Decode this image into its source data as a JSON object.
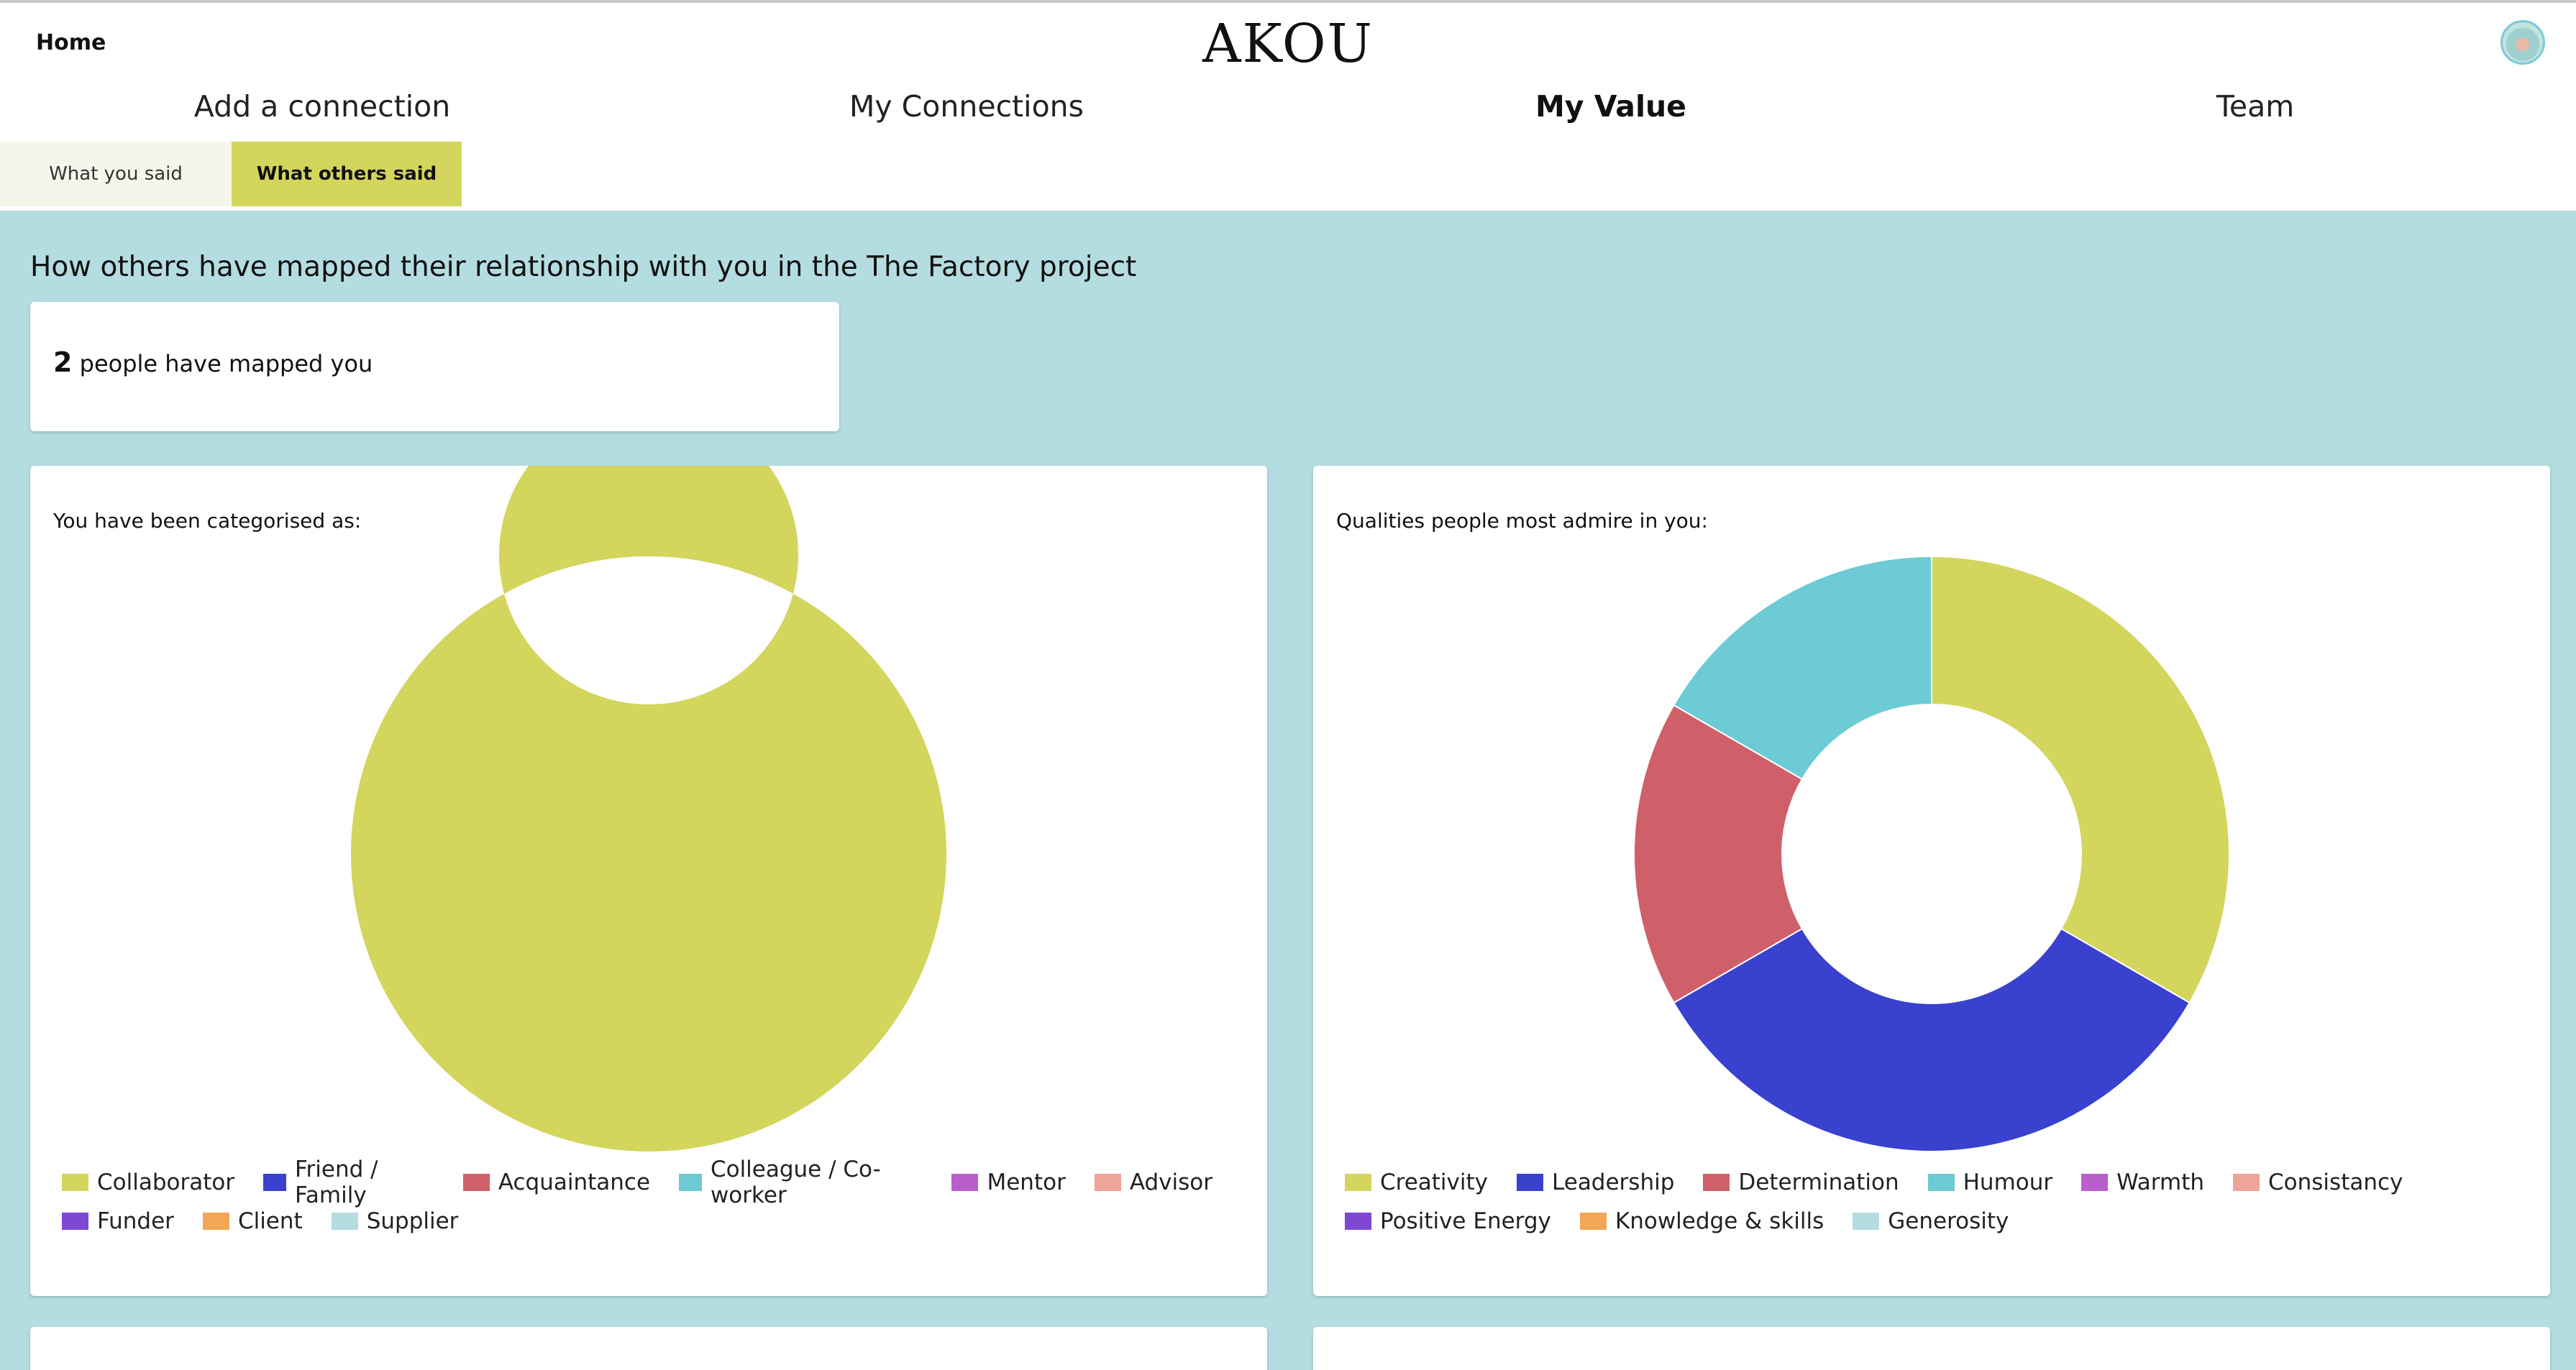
{
  "header": {
    "home_label": "Home",
    "logo_text": "AKOU",
    "avatar_icon": "user-avatar-icon"
  },
  "nav": {
    "items": [
      {
        "label": "Add a connection",
        "active": false
      },
      {
        "label": "My Connections",
        "active": false
      },
      {
        "label": "My Value",
        "active": true
      },
      {
        "label": "Team",
        "active": false
      }
    ]
  },
  "subtabs": {
    "items": [
      {
        "label": "What you said",
        "active": false
      },
      {
        "label": "What others said",
        "active": true
      }
    ]
  },
  "main": {
    "intro": "How others have mapped their relationship with you in the The Factory project",
    "count_value": "2",
    "count_suffix": " people have mapped you"
  },
  "chart_data": [
    {
      "type": "pie",
      "title": "You have been categorised as:",
      "categories": [
        "Collaborator",
        "Friend / Family",
        "Acquaintance",
        "Colleague / Co-worker",
        "Mentor",
        "Advisor",
        "Funder",
        "Client",
        "Supplier"
      ],
      "values": [
        100,
        0,
        0,
        0,
        0,
        0,
        0,
        0,
        0
      ],
      "colors": [
        "#d3d55d",
        "#3a41ce",
        "#cf5f69",
        "#6ccbd4",
        "#b95fcc",
        "#eea597",
        "#7f48d2",
        "#f2a658",
        "#b4dde1"
      ],
      "legend": "bottom"
    },
    {
      "type": "pie",
      "title": "Qualities people most admire in you:",
      "categories": [
        "Creativity",
        "Leadership",
        "Determination",
        "Humour",
        "Warmth",
        "Consistancy",
        "Positive Energy",
        "Knowledge & skills",
        "Generosity"
      ],
      "values": [
        2,
        2,
        1,
        1,
        0,
        0,
        0,
        0,
        0
      ],
      "colors": [
        "#d3d55d",
        "#3a41ce",
        "#cf5f69",
        "#6ccbd4",
        "#b95fcc",
        "#eea597",
        "#7f48d2",
        "#f2a658",
        "#b4dde1"
      ],
      "legend": "bottom"
    }
  ]
}
